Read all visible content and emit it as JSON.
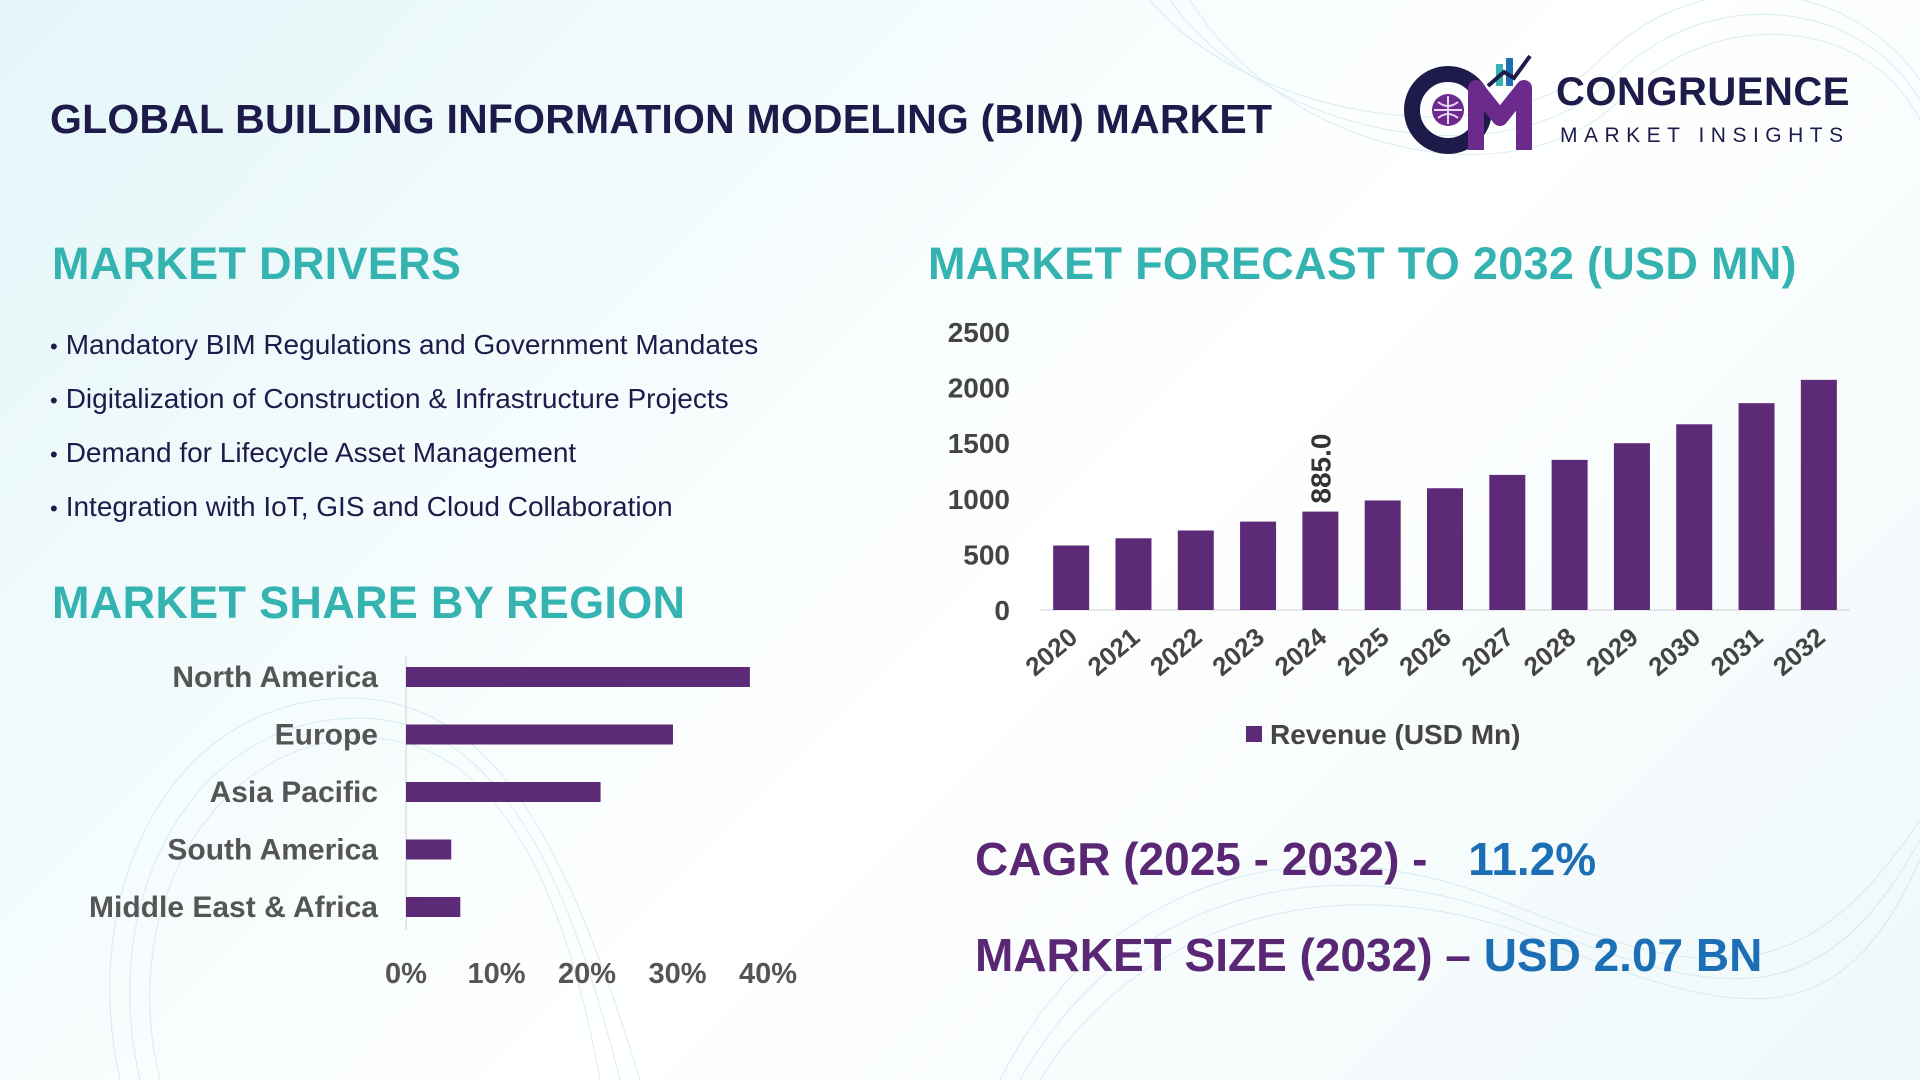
{
  "header": {
    "title": "GLOBAL BUILDING INFORMATION MODELING (BIM) MARKET",
    "logo_name": "CONGRUENCE",
    "logo_sub": "MARKET INSIGHTS"
  },
  "drivers": {
    "heading": "MARKET DRIVERS",
    "items": [
      "Mandatory BIM Regulations and Government Mandates",
      "Digitalization of Construction & Infrastructure Projects",
      "Demand for Lifecycle Asset Management",
      "Integration with IoT, GIS and Cloud Collaboration"
    ]
  },
  "forecast": {
    "heading": "MARKET FORECAST TO 2032 (USD MN)"
  },
  "region": {
    "heading": "MARKET SHARE BY REGION"
  },
  "stats": {
    "cagr_label": "CAGR (2025 - 2032) -",
    "cagr_value": "11.2%",
    "size_label": "MARKET SIZE (2032) –",
    "size_value": "USD 2.07 BN"
  },
  "colors": {
    "bar": "#5d2a78",
    "heading": "#35b3b0",
    "title": "#1e1b4b",
    "stat_label": "#5a2775",
    "stat_value": "#1c6fb4"
  },
  "chart_data": [
    {
      "type": "bar",
      "categories": [
        "2020",
        "2021",
        "2022",
        "2023",
        "2024",
        "2025",
        "2026",
        "2027",
        "2028",
        "2029",
        "2030",
        "2031",
        "2032"
      ],
      "series": [
        {
          "name": "Revenue (USD Mn)",
          "values": [
            580,
            645,
            715,
            795,
            885.0,
            985,
            1095,
            1215,
            1350,
            1500,
            1670,
            1860,
            2070
          ]
        }
      ],
      "data_labels": [
        {
          "category": "2024",
          "text": "885.0"
        }
      ],
      "yticks": [
        0,
        500,
        1000,
        1500,
        2000,
        2500
      ],
      "ylim": [
        0,
        2500
      ],
      "legend": "bottom",
      "grid": false
    },
    {
      "type": "bar",
      "orientation": "horizontal",
      "categories": [
        "North America",
        "Europe",
        "Asia Pacific",
        "South America",
        "Middle East & Africa"
      ],
      "values": [
        38,
        29.5,
        21.5,
        5,
        6
      ],
      "xticks": [
        "0%",
        "10%",
        "20%",
        "30%",
        "40%"
      ],
      "xlim": [
        0,
        40
      ],
      "grid": false
    }
  ]
}
